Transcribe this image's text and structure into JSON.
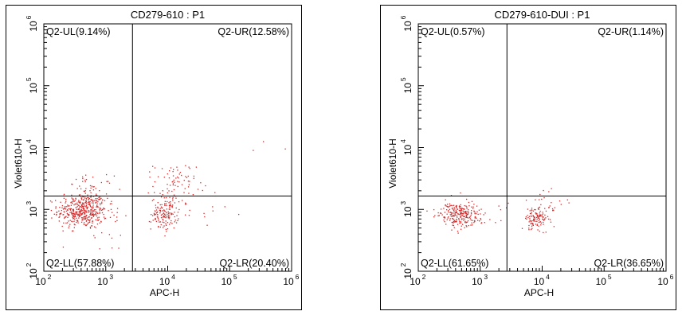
{
  "chart_data": [
    {
      "type": "scatter",
      "title": "CD279-610 : P1",
      "xlabel": "APC-H",
      "ylabel": "Violet610-H",
      "xscale": "log",
      "yscale": "log",
      "xlim": [
        100,
        1000000
      ],
      "ylim": [
        100,
        1000000
      ],
      "xticks": [
        "10",
        "10",
        "10",
        "10",
        "10"
      ],
      "xtick_exponents": [
        "2",
        "3",
        "4",
        "5",
        "6"
      ],
      "yticks": [
        "10",
        "10",
        "10",
        "10",
        "10"
      ],
      "ytick_exponents": [
        "2",
        "3",
        "4",
        "5",
        "6"
      ],
      "gate": {
        "x": 2700,
        "y": 1650
      },
      "quadrants": {
        "ul": "Q2-UL(9.14%)",
        "ur": "Q2-UR(12.58%)",
        "ll": "Q2-LL(57.88%)",
        "lr": "Q2-LR(20.40%)"
      },
      "point_color": "#d62828",
      "clusters": [
        {
          "cx": 420,
          "cy": 950,
          "sx": 0.2,
          "sy": 0.14,
          "n": 430
        },
        {
          "cx": 560,
          "cy": 2100,
          "sx": 0.18,
          "sy": 0.11,
          "n": 45
        },
        {
          "cx": 9000,
          "cy": 850,
          "sx": 0.11,
          "sy": 0.13,
          "n": 150
        },
        {
          "cx": 13000,
          "cy": 2600,
          "sx": 0.17,
          "sy": 0.17,
          "n": 75
        },
        {
          "cx": 30000,
          "cy": 1200,
          "sx": 0.32,
          "sy": 0.22,
          "n": 14
        },
        {
          "cx": 1000,
          "cy": 600,
          "sx": 0.3,
          "sy": 0.25,
          "n": 25
        }
      ],
      "extra_points": [
        [
          350000,
          12500
        ],
        [
          240000,
          9000
        ],
        [
          790000,
          9500
        ],
        [
          140000,
          830
        ]
      ]
    },
    {
      "type": "scatter",
      "title": "CD279-610-DUI : P1",
      "xlabel": "APC-H",
      "ylabel": "Violet610-H",
      "xscale": "log",
      "yscale": "log",
      "xlim": [
        100,
        1000000
      ],
      "ylim": [
        100,
        1000000
      ],
      "xticks": [
        "10",
        "10",
        "10",
        "10",
        "10"
      ],
      "xtick_exponents": [
        "2",
        "3",
        "4",
        "5",
        "6"
      ],
      "yticks": [
        "10",
        "10",
        "10",
        "10",
        "10"
      ],
      "ytick_exponents": [
        "2",
        "3",
        "4",
        "5",
        "6"
      ],
      "gate": {
        "x": 2700,
        "y": 1650
      },
      "quadrants": {
        "ul": "Q2-UL(0.57%)",
        "ur": "Q2-UR(1.14%)",
        "ll": "Q2-LL(61.65%)",
        "lr": "Q2-LR(36.65%)"
      },
      "point_color": "#d62828",
      "clusters": [
        {
          "cx": 450,
          "cy": 820,
          "sx": 0.16,
          "sy": 0.1,
          "n": 240
        },
        {
          "cx": 8000,
          "cy": 700,
          "sx": 0.1,
          "sy": 0.1,
          "n": 120
        },
        {
          "cx": 12000,
          "cy": 1300,
          "sx": 0.2,
          "sy": 0.12,
          "n": 25
        },
        {
          "cx": 1100,
          "cy": 850,
          "sx": 0.3,
          "sy": 0.12,
          "n": 12
        }
      ],
      "extra_points": []
    }
  ]
}
